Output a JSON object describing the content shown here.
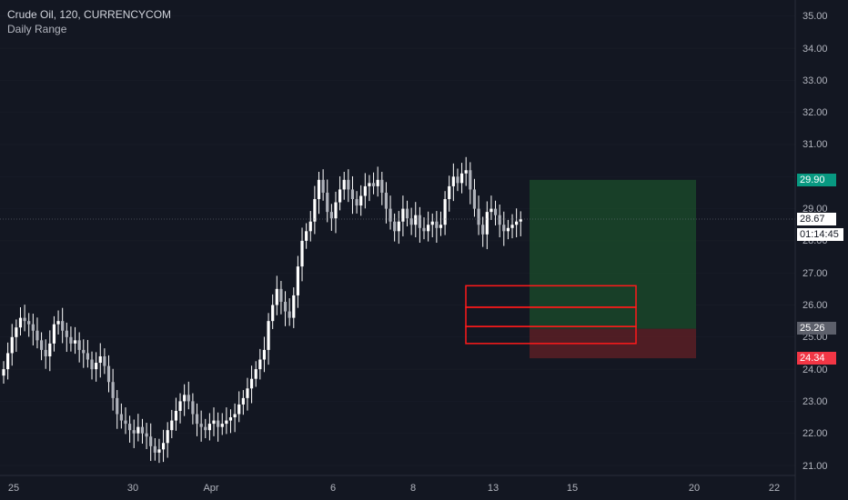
{
  "legend": {
    "symbol_line": "Crude Oil, 120, CURRENCYCOM",
    "indicator": "Daily Range"
  },
  "price_axis": {
    "labels": [
      "35.00",
      "34.00",
      "33.00",
      "32.00",
      "31.00",
      "29.00",
      "28.00",
      "27.00",
      "26.00",
      "25.00",
      "24.00",
      "23.00",
      "22.00",
      "21.00"
    ]
  },
  "time_axis": {
    "labels": [
      "25",
      "30",
      "Apr",
      "6",
      "8",
      "13",
      "15",
      "20",
      "22"
    ]
  },
  "price_tags": {
    "target": {
      "value": "29.90",
      "color": "#089981"
    },
    "current": {
      "value": "28.67",
      "color": "#ffffff"
    },
    "countdown": "01:14:45",
    "entry": {
      "value": "25.26",
      "color": "#5d606b"
    },
    "stop": {
      "value": "24.34",
      "color": "#f23645"
    }
  },
  "colors": {
    "background": "#131722",
    "candle": "#ffffff",
    "profit_zone": "#1b4d2b",
    "loss_zone": "#5a1e25",
    "zone_outline": "#ff1a1a",
    "grid": "#2a2e39"
  },
  "chart_data": {
    "type": "candlestick",
    "title": "Crude Oil, 120, CURRENCYCOM",
    "indicator": "Daily Range",
    "ylim": [
      21.0,
      35.3
    ],
    "x_ticks": [
      "25",
      "30",
      "Apr",
      "6",
      "8",
      "13",
      "15",
      "20",
      "22"
    ],
    "y_ticks": [
      21,
      22,
      23,
      24,
      25,
      26,
      27,
      28,
      29,
      30,
      31,
      32,
      33,
      34,
      35
    ],
    "current_price": 28.67,
    "long_position": {
      "target": 29.9,
      "entry": 25.26,
      "stop": 24.34
    },
    "zones": [
      {
        "top": 26.6,
        "bottom": 25.93
      },
      {
        "top": 25.93,
        "bottom": 25.33
      },
      {
        "top": 25.33,
        "bottom": 24.8
      }
    ],
    "series": [
      {
        "name": "Crude Oil",
        "close": [
          24.0,
          24.5,
          25.0,
          25.3,
          25.6,
          25.5,
          25.4,
          25.2,
          24.9,
          24.6,
          24.4,
          24.8,
          25.4,
          25.5,
          25.2,
          25.0,
          24.8,
          24.9,
          24.6,
          24.5,
          24.3,
          24.0,
          24.2,
          24.4,
          24.1,
          23.6,
          23.1,
          22.6,
          22.4,
          22.3,
          22.1,
          22.0,
          22.2,
          22.0,
          21.9,
          21.6,
          21.4,
          21.5,
          21.7,
          22.1,
          22.4,
          22.7,
          23.0,
          23.2,
          23.0,
          22.6,
          22.3,
          22.2,
          22.1,
          22.3,
          22.4,
          22.2,
          22.3,
          22.4,
          22.5,
          22.6,
          22.9,
          23.1,
          23.4,
          23.7,
          24.0,
          24.3,
          24.6,
          25.5,
          26.0,
          26.5,
          26.1,
          25.8,
          25.6,
          26.3,
          27.2,
          28.0,
          28.3,
          28.6,
          29.3,
          29.9,
          29.5,
          28.9,
          28.7,
          29.2,
          29.6,
          29.9,
          29.6,
          29.3,
          29.1,
          29.4,
          29.7,
          29.8,
          29.7,
          29.9,
          29.5,
          29.0,
          28.6,
          28.3,
          28.6,
          29.0,
          28.7,
          28.5,
          28.8,
          28.4,
          28.3,
          28.5,
          28.6,
          28.4,
          28.5,
          29.3,
          29.7,
          30.0,
          29.8,
          30.1,
          30.2,
          29.6,
          29.0,
          28.5,
          28.2,
          28.9,
          29.0,
          28.8,
          28.5,
          28.3,
          28.4,
          28.5,
          28.6,
          28.67
        ]
      }
    ]
  }
}
